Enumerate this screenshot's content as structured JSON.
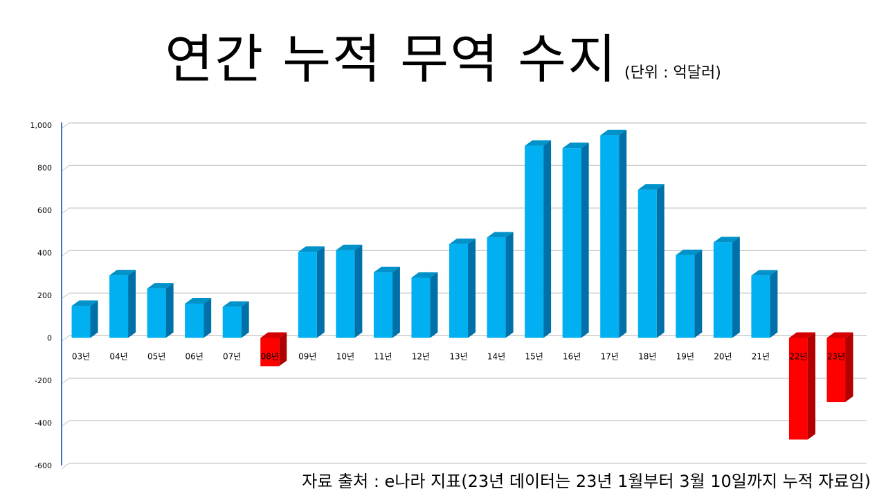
{
  "header": {
    "title": "연간 누적 무역 수지",
    "unit": "(단위 : 억달러)"
  },
  "footer": {
    "source": "자료 출처 : e나라 지표(23년 데이터는 23년 1월부터 3월 10일까지 누적 자료임)"
  },
  "colors": {
    "positive_front": "#00b0f0",
    "positive_side": "#0070a8",
    "positive_top": "#0092c8",
    "negative_front": "#ff0000",
    "negative_side": "#b00000",
    "negative_top": "#d40000",
    "gridline": "#c8c8c8",
    "axis": "#4472c4"
  },
  "chart_data": {
    "type": "bar",
    "title": "연간 누적 무역 수지",
    "xlabel": "",
    "ylabel": "",
    "ylim": [
      -600,
      1000
    ],
    "yticks": [
      {
        "value": 1000,
        "label": "1,000"
      },
      {
        "value": 800,
        "label": "800"
      },
      {
        "value": 600,
        "label": "600"
      },
      {
        "value": 400,
        "label": "400"
      },
      {
        "value": 200,
        "label": "200"
      },
      {
        "value": 0,
        "label": "0"
      },
      {
        "value": -200,
        "label": "-200"
      },
      {
        "value": -400,
        "label": "-400"
      },
      {
        "value": -600,
        "label": "-600"
      }
    ],
    "grid": true,
    "categories": [
      "03년",
      "04년",
      "05년",
      "06년",
      "07년",
      "08년",
      "09년",
      "10년",
      "11년",
      "12년",
      "13년",
      "14년",
      "15년",
      "16년",
      "17년",
      "18년",
      "19년",
      "20년",
      "21년",
      "22년",
      "23년"
    ],
    "values": [
      150,
      294,
      232,
      161,
      146,
      -133,
      404,
      412,
      308,
      283,
      441,
      472,
      903,
      892,
      952,
      697,
      389,
      449,
      293,
      -478,
      -301
    ]
  }
}
